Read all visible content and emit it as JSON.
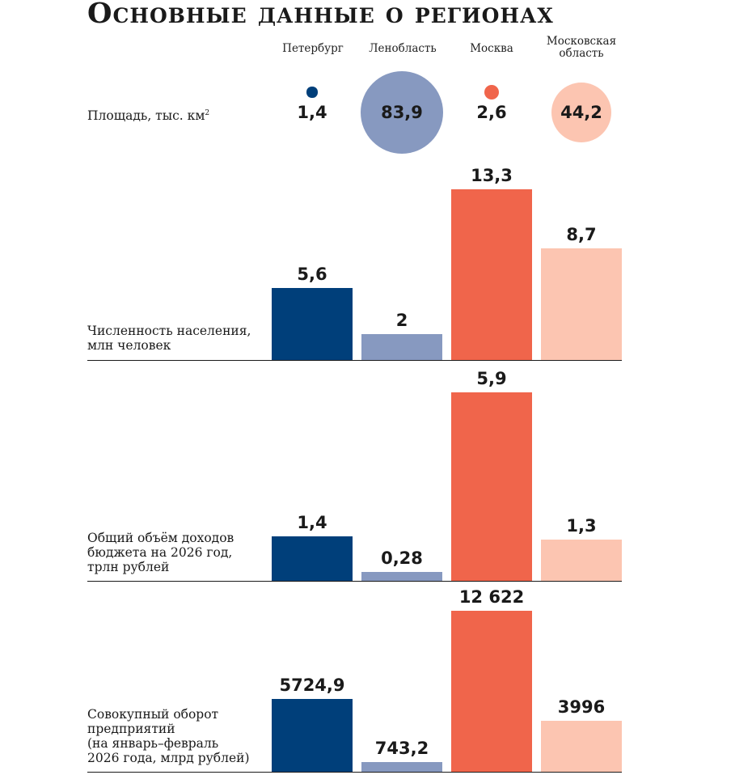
{
  "title": "Основные данные о регионах",
  "regions": [
    "Петербург",
    "Ленобласть",
    "Москва",
    "Московская область"
  ],
  "colors": [
    "#003f7a",
    "#8799c0",
    "#f0654b",
    "#fcc5b1"
  ],
  "chart_data": [
    {
      "type": "bubble",
      "title": "Площадь, тыс. км²",
      "label": "Площадь, тыс. км",
      "label_sup": "2",
      "categories": [
        "Петербург",
        "Ленобласть",
        "Москва",
        "Московская область"
      ],
      "values": [
        1.4,
        83.9,
        2.6,
        44.2
      ],
      "display": [
        "1,4",
        "83,9",
        "2,6",
        "44,2"
      ]
    },
    {
      "type": "bar",
      "title": "Численность населения, млн человек",
      "label_lines": [
        "Численность населения,",
        "млн человек"
      ],
      "categories": [
        "Петербург",
        "Ленобласть",
        "Москва",
        "Московская область"
      ],
      "values": [
        5.6,
        2,
        13.3,
        8.7
      ],
      "display": [
        "5,6",
        "2",
        "13,3",
        "8,7"
      ]
    },
    {
      "type": "bar",
      "title": "Общий объём доходов бюджета на 2026 год, трлн рублей",
      "label_lines": [
        "Общий объём доходов",
        "бюджета на 2026 год,",
        "трлн рублей"
      ],
      "categories": [
        "Петербург",
        "Ленобласть",
        "Москва",
        "Московская область"
      ],
      "values": [
        1.4,
        0.28,
        5.9,
        1.3
      ],
      "display": [
        "1,4",
        "0,28",
        "5,9",
        "1,3"
      ]
    },
    {
      "type": "bar",
      "title": "Совокупный оборот предприятий (на январь–февраль 2026 года, млрд рублей)",
      "label_lines": [
        "Совокупный оборот",
        "предприятий",
        "(на январь–февраль",
        "2026 года, млрд рублей)"
      ],
      "categories": [
        "Петербург",
        "Ленобласть",
        "Москва",
        "Московская область"
      ],
      "values": [
        5724.9,
        743.2,
        12622,
        3996
      ],
      "display": [
        "5724,9",
        "743,2",
        "12 622",
        "3996"
      ]
    }
  ]
}
